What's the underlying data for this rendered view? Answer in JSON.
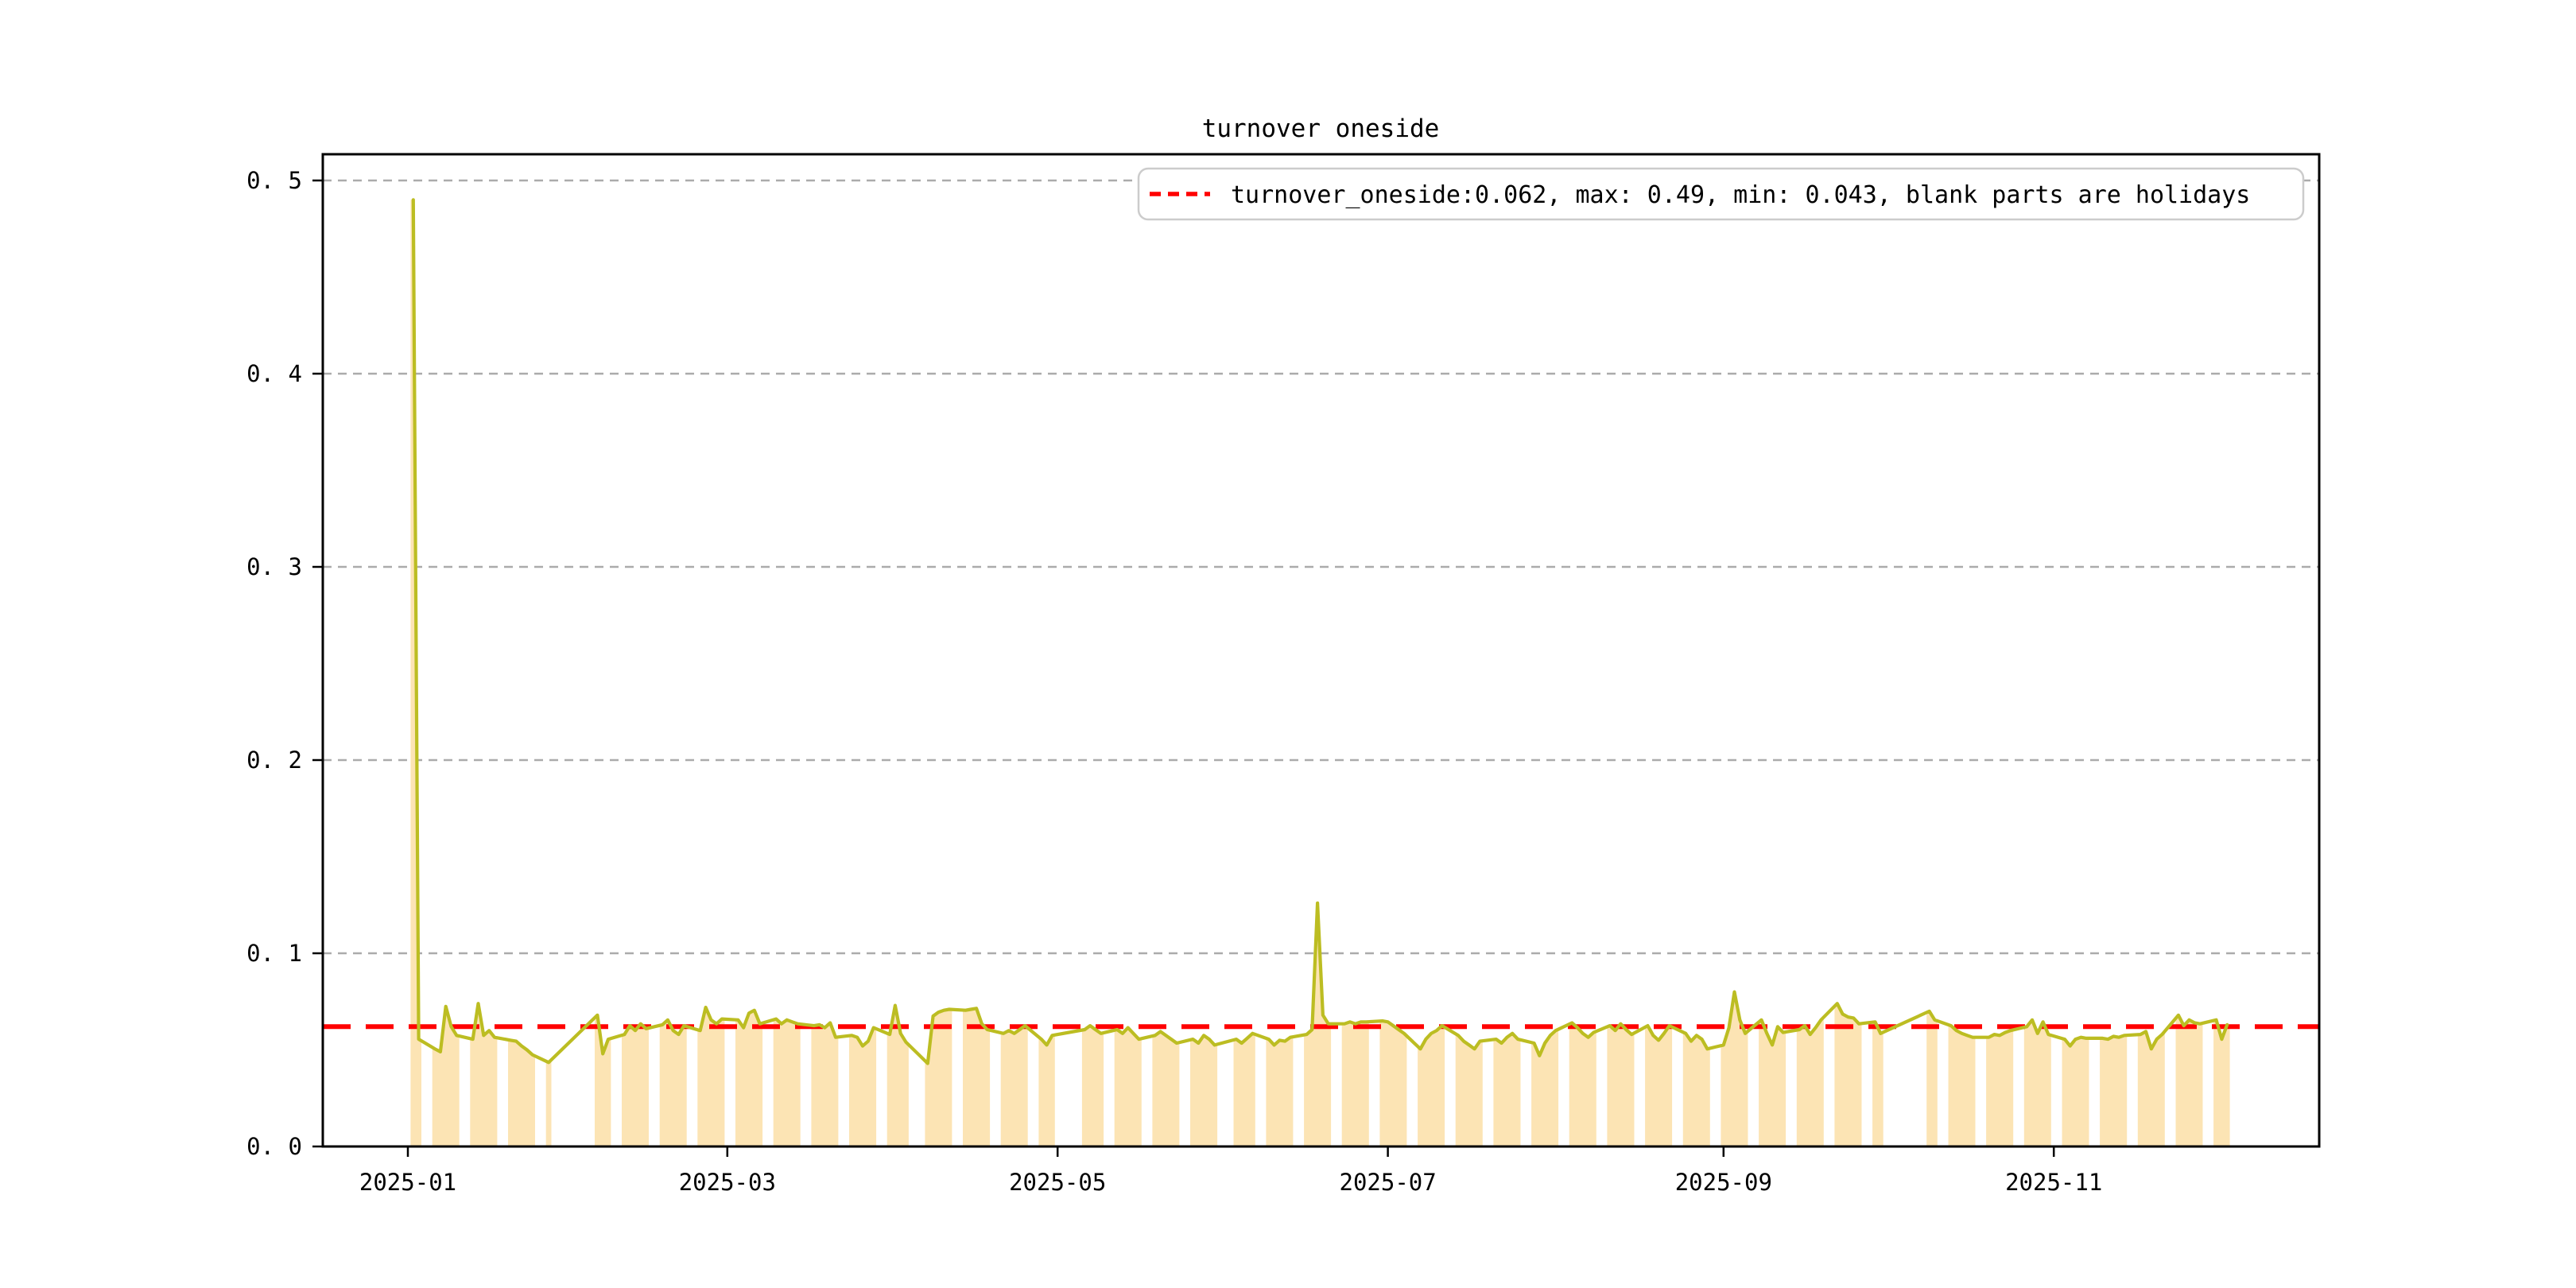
{
  "figure": {
    "title": "turnover oneside",
    "background": "#ffffff"
  },
  "legend": {
    "label": "turnover_oneside:0.062, max: 0.49, min: 0.043, blank parts are holidays",
    "marker": "red-dashed-line"
  },
  "axes": {
    "x_ticks": [
      {
        "label": "2025-01",
        "date": "2025-01-01"
      },
      {
        "label": "2025-03",
        "date": "2025-03-01"
      },
      {
        "label": "2025-05",
        "date": "2025-05-01"
      },
      {
        "label": "2025-07",
        "date": "2025-07-01"
      },
      {
        "label": "2025-09",
        "date": "2025-09-01"
      },
      {
        "label": "2025-11",
        "date": "2025-11-01"
      }
    ],
    "y_ticks": [
      {
        "label": "0. 0",
        "value": 0.0
      },
      {
        "label": "0. 1",
        "value": 0.1
      },
      {
        "label": "0. 2",
        "value": 0.2
      },
      {
        "label": "0. 3",
        "value": 0.3
      },
      {
        "label": "0. 4",
        "value": 0.4
      },
      {
        "label": "0. 5",
        "value": 0.5
      }
    ]
  },
  "colors": {
    "line": "#bcbd22",
    "holiday_fill": "#fce4b4",
    "reference": "#ff0000",
    "grid": "#ababab",
    "spine": "#000000",
    "legend_border": "#cccccc"
  },
  "chart_data": {
    "type": "line",
    "title": "turnover oneside",
    "xlabel": "",
    "ylabel": "",
    "ylim": [
      0.0,
      0.5135
    ],
    "yticks": [
      0.0,
      0.1,
      0.2,
      0.3,
      0.4,
      0.5
    ],
    "grid": true,
    "legend_position": "upper right",
    "reference_line": {
      "value": 0.062,
      "color": "#ff0000",
      "style": "dashed"
    },
    "stats": {
      "turnover_oneside": 0.062,
      "max": 0.49,
      "min": 0.043
    },
    "shading_note": "trading days shaded under curve; blank parts are holidays",
    "series": [
      {
        "name": "turnover_oneside",
        "dates": [
          "2025-01-02",
          "2025-01-03",
          "2025-01-06",
          "2025-01-07",
          "2025-01-08",
          "2025-01-09",
          "2025-01-10",
          "2025-01-13",
          "2025-01-14",
          "2025-01-15",
          "2025-01-16",
          "2025-01-17",
          "2025-01-20",
          "2025-01-21",
          "2025-01-22",
          "2025-01-23",
          "2025-01-24",
          "2025-01-27",
          "2025-02-05",
          "2025-02-06",
          "2025-02-07",
          "2025-02-10",
          "2025-02-11",
          "2025-02-12",
          "2025-02-13",
          "2025-02-14",
          "2025-02-17",
          "2025-02-18",
          "2025-02-19",
          "2025-02-20",
          "2025-02-21",
          "2025-02-24",
          "2025-02-25",
          "2025-02-26",
          "2025-02-27",
          "2025-02-28",
          "2025-03-03",
          "2025-03-04",
          "2025-03-05",
          "2025-03-06",
          "2025-03-07",
          "2025-03-10",
          "2025-03-11",
          "2025-03-12",
          "2025-03-13",
          "2025-03-14",
          "2025-03-17",
          "2025-03-18",
          "2025-03-19",
          "2025-03-20",
          "2025-03-21",
          "2025-03-24",
          "2025-03-25",
          "2025-03-26",
          "2025-03-27",
          "2025-03-28",
          "2025-03-31",
          "2025-04-01",
          "2025-04-02",
          "2025-04-03",
          "2025-04-07",
          "2025-04-08",
          "2025-04-09",
          "2025-04-10",
          "2025-04-11",
          "2025-04-14",
          "2025-04-15",
          "2025-04-16",
          "2025-04-17",
          "2025-04-18",
          "2025-04-21",
          "2025-04-22",
          "2025-04-23",
          "2025-04-24",
          "2025-04-25",
          "2025-04-28",
          "2025-04-29",
          "2025-04-30",
          "2025-05-06",
          "2025-05-07",
          "2025-05-08",
          "2025-05-09",
          "2025-05-12",
          "2025-05-13",
          "2025-05-14",
          "2025-05-15",
          "2025-05-16",
          "2025-05-19",
          "2025-05-20",
          "2025-05-21",
          "2025-05-22",
          "2025-05-23",
          "2025-05-26",
          "2025-05-27",
          "2025-05-28",
          "2025-05-29",
          "2025-05-30",
          "2025-06-03",
          "2025-06-04",
          "2025-06-05",
          "2025-06-06",
          "2025-06-09",
          "2025-06-10",
          "2025-06-11",
          "2025-06-12",
          "2025-06-13",
          "2025-06-16",
          "2025-06-17",
          "2025-06-18",
          "2025-06-19",
          "2025-06-20",
          "2025-06-23",
          "2025-06-24",
          "2025-06-25",
          "2025-06-26",
          "2025-06-27",
          "2025-06-30",
          "2025-07-01",
          "2025-07-02",
          "2025-07-03",
          "2025-07-04",
          "2025-07-07",
          "2025-07-08",
          "2025-07-09",
          "2025-07-10",
          "2025-07-11",
          "2025-07-14",
          "2025-07-15",
          "2025-07-16",
          "2025-07-17",
          "2025-07-18",
          "2025-07-21",
          "2025-07-22",
          "2025-07-23",
          "2025-07-24",
          "2025-07-25",
          "2025-07-28",
          "2025-07-29",
          "2025-07-30",
          "2025-07-31",
          "2025-08-01",
          "2025-08-04",
          "2025-08-05",
          "2025-08-06",
          "2025-08-07",
          "2025-08-08",
          "2025-08-11",
          "2025-08-12",
          "2025-08-13",
          "2025-08-14",
          "2025-08-15",
          "2025-08-18",
          "2025-08-19",
          "2025-08-20",
          "2025-08-21",
          "2025-08-22",
          "2025-08-25",
          "2025-08-26",
          "2025-08-27",
          "2025-08-28",
          "2025-08-29",
          "2025-09-01",
          "2025-09-02",
          "2025-09-03",
          "2025-09-04",
          "2025-09-05",
          "2025-09-08",
          "2025-09-09",
          "2025-09-10",
          "2025-09-11",
          "2025-09-12",
          "2025-09-15",
          "2025-09-16",
          "2025-09-17",
          "2025-09-18",
          "2025-09-19",
          "2025-09-22",
          "2025-09-23",
          "2025-09-24",
          "2025-09-25",
          "2025-09-26",
          "2025-09-29",
          "2025-09-30",
          "2025-10-09",
          "2025-10-10",
          "2025-10-13",
          "2025-10-14",
          "2025-10-15",
          "2025-10-16",
          "2025-10-17",
          "2025-10-20",
          "2025-10-21",
          "2025-10-22",
          "2025-10-23",
          "2025-10-24",
          "2025-10-27",
          "2025-10-28",
          "2025-10-29",
          "2025-10-30",
          "2025-10-31",
          "2025-11-03",
          "2025-11-04",
          "2025-11-05",
          "2025-11-06",
          "2025-11-07",
          "2025-11-10",
          "2025-11-11",
          "2025-11-12",
          "2025-11-13",
          "2025-11-14",
          "2025-11-17",
          "2025-11-18",
          "2025-11-19",
          "2025-11-20",
          "2025-11-21",
          "2025-11-24",
          "2025-11-25",
          "2025-11-26",
          "2025-11-27",
          "2025-11-28",
          "2025-12-01",
          "2025-12-02",
          "2025-12-03"
        ],
        "values": [
          0.49,
          0.0555,
          0.0505,
          0.049,
          0.0725,
          0.062,
          0.0575,
          0.0555,
          0.074,
          0.0575,
          0.06,
          0.0565,
          0.055,
          0.0545,
          0.052,
          0.05,
          0.0475,
          0.0435,
          0.068,
          0.048,
          0.0555,
          0.058,
          0.0625,
          0.06,
          0.0635,
          0.061,
          0.063,
          0.0655,
          0.06,
          0.058,
          0.0625,
          0.06,
          0.072,
          0.0655,
          0.0635,
          0.066,
          0.0655,
          0.0615,
          0.069,
          0.0705,
          0.0635,
          0.066,
          0.0635,
          0.0655,
          0.0645,
          0.0635,
          0.0625,
          0.063,
          0.0615,
          0.064,
          0.0565,
          0.0575,
          0.0565,
          0.052,
          0.0545,
          0.0615,
          0.058,
          0.073,
          0.0585,
          0.054,
          0.043,
          0.0675,
          0.0695,
          0.0705,
          0.071,
          0.0705,
          0.071,
          0.0715,
          0.0635,
          0.0605,
          0.0585,
          0.06,
          0.0585,
          0.0605,
          0.0625,
          0.0555,
          0.0525,
          0.0575,
          0.0605,
          0.0625,
          0.0605,
          0.0585,
          0.0605,
          0.0585,
          0.0615,
          0.0585,
          0.0555,
          0.0575,
          0.0595,
          0.0575,
          0.0555,
          0.0535,
          0.0555,
          0.0535,
          0.0575,
          0.0555,
          0.0525,
          0.0555,
          0.0535,
          0.056,
          0.0585,
          0.0555,
          0.0525,
          0.055,
          0.0545,
          0.0565,
          0.058,
          0.0605,
          0.126,
          0.068,
          0.0635,
          0.0635,
          0.0645,
          0.0635,
          0.0645,
          0.0645,
          0.065,
          0.0645,
          0.0625,
          0.0605,
          0.0585,
          0.0505,
          0.0555,
          0.0585,
          0.06,
          0.0625,
          0.0575,
          0.0545,
          0.0525,
          0.0505,
          0.0545,
          0.0555,
          0.0535,
          0.0565,
          0.0585,
          0.0555,
          0.0535,
          0.047,
          0.0535,
          0.0575,
          0.06,
          0.064,
          0.0615,
          0.0585,
          0.0565,
          0.059,
          0.0625,
          0.06,
          0.0635,
          0.0605,
          0.058,
          0.0625,
          0.0575,
          0.055,
          0.0585,
          0.0625,
          0.0585,
          0.0545,
          0.0575,
          0.0555,
          0.0505,
          0.0525,
          0.0615,
          0.08,
          0.0655,
          0.0585,
          0.0655,
          0.0585,
          0.0525,
          0.062,
          0.059,
          0.0605,
          0.0625,
          0.058,
          0.0615,
          0.0655,
          0.074,
          0.0685,
          0.067,
          0.0665,
          0.0635,
          0.0645,
          0.0585,
          0.07,
          0.0655,
          0.0625,
          0.06,
          0.0585,
          0.0575,
          0.0565,
          0.0565,
          0.058,
          0.0575,
          0.059,
          0.06,
          0.062,
          0.0655,
          0.0585,
          0.0645,
          0.058,
          0.0555,
          0.052,
          0.0555,
          0.0565,
          0.056,
          0.056,
          0.0555,
          0.057,
          0.0565,
          0.0575,
          0.058,
          0.0595,
          0.0505,
          0.0555,
          0.058,
          0.068,
          0.0625,
          0.0655,
          0.064,
          0.0635,
          0.0655,
          0.0555,
          0.063
        ]
      }
    ]
  }
}
